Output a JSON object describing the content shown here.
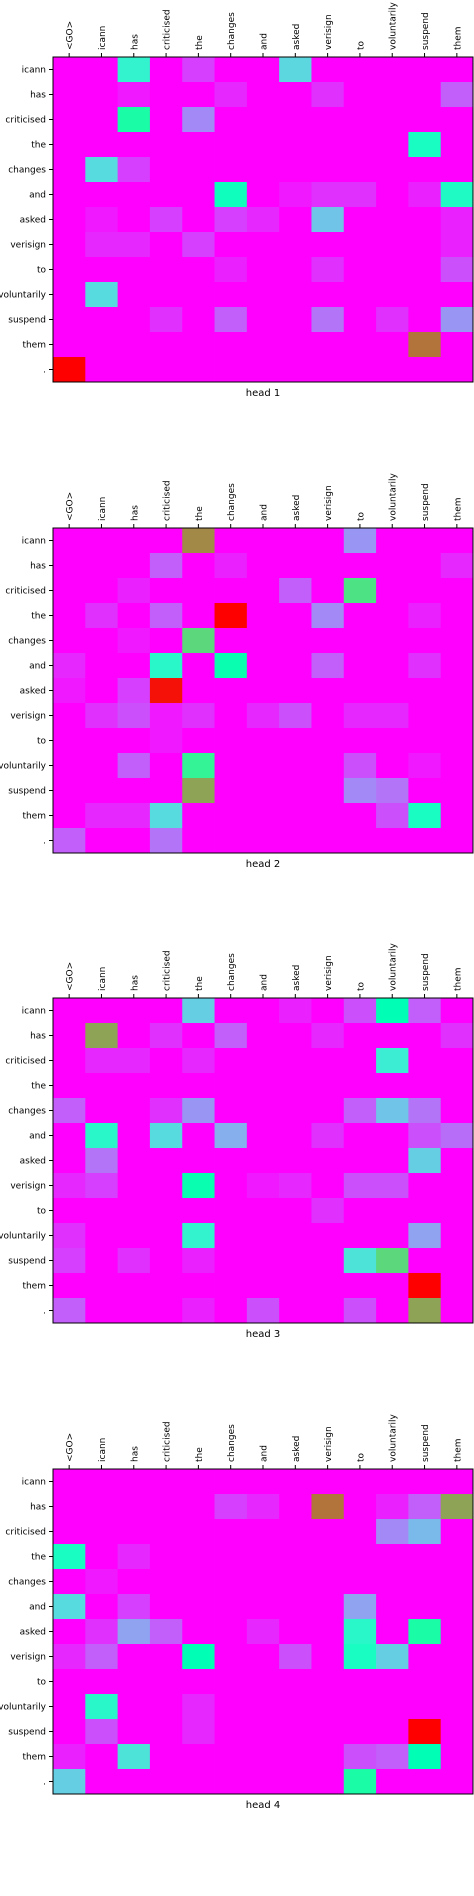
{
  "chart_data": [
    {
      "type": "heatmap",
      "title": "head 1",
      "colormap": "rainbow",
      "x_labels": [
        "<GO>",
        "icann",
        "has",
        "criticised",
        "the",
        "changes",
        "and",
        "asked",
        "verisign",
        "to",
        "voluntarily",
        "suspend",
        "them"
      ],
      "y_labels": [
        "icann",
        "has",
        "criticised",
        "the",
        "changes",
        "and",
        "asked",
        "verisign",
        "to",
        "voluntarily",
        "suspend",
        "them",
        "."
      ],
      "values": [
        [
          0,
          0,
          0.4,
          0,
          0.08,
          0,
          0,
          0.32,
          0,
          0,
          0,
          0,
          0
        ],
        [
          0,
          0,
          0.03,
          0,
          0,
          0.05,
          0,
          0,
          0.06,
          0,
          0,
          0,
          0.12
        ],
        [
          0,
          0,
          0.55,
          0,
          0.18,
          0,
          0,
          0,
          0,
          0,
          0,
          0,
          0
        ],
        [
          0,
          0,
          0,
          0,
          0,
          0,
          0,
          0,
          0,
          0,
          0,
          0.45,
          0
        ],
        [
          0,
          0.33,
          0.08,
          0,
          0,
          0,
          0,
          0,
          0,
          0,
          0,
          0,
          0
        ],
        [
          0,
          0,
          0,
          0,
          0,
          0.47,
          0,
          0.03,
          0.06,
          0.06,
          0,
          0.04,
          0.44
        ],
        [
          0,
          0.03,
          0,
          0.08,
          0,
          0.08,
          0.05,
          0,
          0.28,
          0,
          0,
          0,
          0.04
        ],
        [
          0,
          0.05,
          0.05,
          0,
          0.08,
          0,
          0,
          0,
          0,
          0,
          0,
          0,
          0.04
        ],
        [
          0,
          0,
          0,
          0,
          0,
          0.04,
          0,
          0,
          0.06,
          0,
          0,
          0,
          0.1
        ],
        [
          0,
          0.33,
          0,
          0,
          0,
          0,
          0,
          0,
          0,
          0,
          0,
          0,
          0
        ],
        [
          0,
          0,
          0,
          0.06,
          0,
          0.12,
          0,
          0,
          0.15,
          0,
          0.06,
          0,
          0.2
        ],
        [
          0,
          0,
          0,
          0,
          0,
          0,
          0,
          0,
          0,
          0,
          0,
          0.85,
          0
        ],
        [
          1.0,
          0,
          0,
          0,
          0,
          0,
          0,
          0,
          0,
          0,
          0,
          0,
          0
        ]
      ]
    },
    {
      "type": "heatmap",
      "title": "head 2",
      "colormap": "rainbow",
      "x_labels": [
        "<GO>",
        "icann",
        "has",
        "criticised",
        "the",
        "changes",
        "and",
        "asked",
        "verisign",
        "to",
        "voluntarily",
        "suspend",
        "them"
      ],
      "y_labels": [
        "icann",
        "has",
        "criticised",
        "the",
        "changes",
        "and",
        "asked",
        "verisign",
        "to",
        "voluntarily",
        "suspend",
        "them",
        "."
      ],
      "values": [
        [
          0,
          0,
          0,
          0,
          0.82,
          0,
          0,
          0,
          0,
          0.2,
          0,
          0,
          0
        ],
        [
          0,
          0,
          0,
          0.12,
          0,
          0.04,
          0,
          0,
          0,
          0,
          0,
          0,
          0.05
        ],
        [
          0,
          0,
          0.04,
          0,
          0,
          0,
          0,
          0.12,
          0,
          0.65,
          0,
          0,
          0
        ],
        [
          0,
          0.06,
          0,
          0.12,
          0,
          1.0,
          0,
          0,
          0.18,
          0,
          0,
          0.04,
          0
        ],
        [
          0,
          0,
          0.03,
          0,
          0.68,
          0,
          0,
          0,
          0,
          0,
          0,
          0,
          0
        ],
        [
          0.05,
          0,
          0,
          0.42,
          0,
          0.52,
          0,
          0,
          0.12,
          0,
          0,
          0.06,
          0
        ],
        [
          0.03,
          0,
          0.08,
          0.98,
          0,
          0,
          0,
          0,
          0,
          0,
          0,
          0,
          0
        ],
        [
          0,
          0.06,
          0.1,
          0.03,
          0.06,
          0,
          0.05,
          0.1,
          0,
          0.05,
          0.05,
          0,
          0
        ],
        [
          0,
          0,
          0,
          0.03,
          0,
          0,
          0,
          0,
          0,
          0,
          0,
          0,
          0
        ],
        [
          0,
          0,
          0.12,
          0,
          0.6,
          0,
          0,
          0,
          0,
          0.1,
          0,
          0.03,
          0
        ],
        [
          0,
          0,
          0,
          0,
          0.78,
          0,
          0,
          0,
          0,
          0.18,
          0.15,
          0,
          0
        ],
        [
          0,
          0.05,
          0.05,
          0.33,
          0,
          0,
          0,
          0,
          0,
          0,
          0.1,
          0.45,
          0
        ],
        [
          0.12,
          0,
          0,
          0.15,
          0,
          0,
          0,
          0,
          0,
          0,
          0,
          0,
          0
        ]
      ]
    },
    {
      "type": "heatmap",
      "title": "head 3",
      "colormap": "rainbow",
      "x_labels": [
        "<GO>",
        "icann",
        "has",
        "criticised",
        "the",
        "changes",
        "and",
        "asked",
        "verisign",
        "to",
        "voluntarily",
        "suspend",
        "them"
      ],
      "y_labels": [
        "icann",
        "has",
        "criticised",
        "the",
        "changes",
        "and",
        "asked",
        "verisign",
        "to",
        "voluntarily",
        "suspend",
        "them",
        "."
      ],
      "values": [
        [
          0,
          0,
          0,
          0,
          0.3,
          0,
          0,
          0.04,
          0,
          0.1,
          0.5,
          0.12,
          0
        ],
        [
          0,
          0.78,
          0,
          0.06,
          0,
          0.12,
          0,
          0,
          0.05,
          0,
          0,
          0,
          0.06
        ],
        [
          0,
          0.05,
          0.05,
          0,
          0.05,
          0,
          0,
          0,
          0,
          0,
          0.38,
          0,
          0
        ],
        [
          0,
          0,
          0,
          0,
          0,
          0,
          0,
          0,
          0,
          0,
          0,
          0,
          0
        ],
        [
          0.12,
          0,
          0,
          0.06,
          0.2,
          0,
          0,
          0,
          0,
          0.12,
          0.28,
          0.15,
          0
        ],
        [
          0,
          0.42,
          0,
          0.33,
          0,
          0.24,
          0,
          0,
          0.06,
          0,
          0,
          0.1,
          0.14
        ],
        [
          0,
          0.15,
          0,
          0,
          0,
          0,
          0,
          0,
          0,
          0,
          0,
          0.3,
          0
        ],
        [
          0.05,
          0.08,
          0,
          0,
          0.52,
          0,
          0.03,
          0.05,
          0,
          0.1,
          0.1,
          0,
          0
        ],
        [
          0,
          0,
          0,
          0,
          0,
          0,
          0,
          0,
          0.06,
          0,
          0,
          0,
          0
        ],
        [
          0.06,
          0,
          0,
          0,
          0.4,
          0,
          0,
          0,
          0,
          0,
          0,
          0.22,
          0
        ],
        [
          0.08,
          0,
          0.06,
          0,
          0.04,
          0,
          0,
          0,
          0,
          0.35,
          0.68,
          0,
          0
        ],
        [
          0,
          0,
          0,
          0,
          0,
          0,
          0,
          0,
          0,
          0,
          0,
          1.0,
          0
        ],
        [
          0.12,
          0,
          0,
          0,
          0.04,
          0,
          0.1,
          0,
          0,
          0.1,
          0,
          0.78,
          0
        ]
      ]
    },
    {
      "type": "heatmap",
      "title": "head 4",
      "colormap": "rainbow",
      "x_labels": [
        "<GO>",
        "icann",
        "has",
        "criticised",
        "the",
        "changes",
        "and",
        "asked",
        "verisign",
        "to",
        "voluntarily",
        "suspend",
        "them"
      ],
      "y_labels": [
        "icann",
        "has",
        "criticised",
        "the",
        "changes",
        "and",
        "asked",
        "verisign",
        "to",
        "voluntarily",
        "suspend",
        "them",
        "."
      ],
      "values": [
        [
          0,
          0,
          0,
          0,
          0,
          0,
          0,
          0,
          0,
          0,
          0,
          0,
          0
        ],
        [
          0,
          0,
          0,
          0,
          0,
          0.08,
          0.05,
          0,
          0.85,
          0,
          0.04,
          0.12,
          0.78
        ],
        [
          0,
          0,
          0,
          0,
          0,
          0,
          0,
          0,
          0,
          0,
          0.18,
          0.26,
          0
        ],
        [
          0.45,
          0,
          0.05,
          0,
          0,
          0,
          0,
          0,
          0,
          0,
          0,
          0,
          0
        ],
        [
          0,
          0.03,
          0,
          0,
          0,
          0,
          0,
          0,
          0,
          0,
          0,
          0,
          0
        ],
        [
          0.33,
          0,
          0.08,
          0,
          0,
          0,
          0,
          0,
          0,
          0.22,
          0,
          0,
          0
        ],
        [
          0,
          0.06,
          0.22,
          0.12,
          0,
          0,
          0.05,
          0,
          0,
          0.42,
          0,
          0.55,
          0
        ],
        [
          0.05,
          0.12,
          0,
          0,
          0.5,
          0,
          0,
          0.1,
          0,
          0.45,
          0.3,
          0,
          0
        ],
        [
          0,
          0,
          0,
          0,
          0,
          0,
          0,
          0,
          0,
          0,
          0,
          0,
          0
        ],
        [
          0,
          0.42,
          0,
          0,
          0.05,
          0,
          0,
          0,
          0,
          0,
          0,
          0,
          0
        ],
        [
          0,
          0.1,
          0,
          0,
          0.05,
          0,
          0,
          0,
          0,
          0,
          0,
          1.0,
          0
        ],
        [
          0.04,
          0,
          0.35,
          0,
          0,
          0,
          0,
          0,
          0,
          0.1,
          0.12,
          0.5,
          0
        ],
        [
          0.3,
          0,
          0,
          0,
          0,
          0,
          0,
          0,
          0,
          0.55,
          0,
          0,
          0
        ]
      ]
    }
  ]
}
